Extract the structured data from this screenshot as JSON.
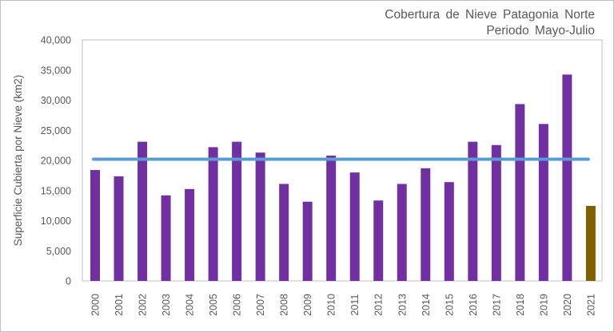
{
  "chart_data": {
    "type": "bar",
    "title": [
      "Cobertura de Nieve Patagonia Norte",
      "Periodo Mayo-Julio"
    ],
    "xlabel": "",
    "ylabel": "Superficie Cubierta por Nieve (km2)",
    "ylim": [
      0,
      40000
    ],
    "yticks": [
      "0",
      "5,000",
      "10,000",
      "15,000",
      "20,000",
      "25,000",
      "30,000",
      "35,000",
      "40,000"
    ],
    "ytick_values": [
      0,
      5000,
      10000,
      15000,
      20000,
      25000,
      30000,
      35000,
      40000
    ],
    "categories": [
      "2000",
      "2001",
      "2002",
      "2003",
      "2004",
      "2005",
      "2006",
      "2007",
      "2008",
      "2009",
      "2010",
      "2011",
      "2012",
      "2013",
      "2014",
      "2015",
      "2016",
      "2017",
      "2018",
      "2019",
      "2020",
      "2021"
    ],
    "values": [
      18400,
      17350,
      23100,
      14200,
      15250,
      22200,
      23100,
      21300,
      16100,
      13150,
      20800,
      18000,
      13350,
      16100,
      18700,
      16400,
      23100,
      22550,
      29350,
      26050,
      34250,
      12450
    ],
    "bar_colors": [
      "#7030a0",
      "#7030a0",
      "#7030a0",
      "#7030a0",
      "#7030a0",
      "#7030a0",
      "#7030a0",
      "#7030a0",
      "#7030a0",
      "#7030a0",
      "#7030a0",
      "#7030a0",
      "#7030a0",
      "#7030a0",
      "#7030a0",
      "#7030a0",
      "#7030a0",
      "#7030a0",
      "#7030a0",
      "#7030a0",
      "#7030a0",
      "#7f6000"
    ],
    "mean_line": {
      "value": 20200,
      "color": "#5b9bd5"
    },
    "grid": false,
    "legend": "none"
  }
}
